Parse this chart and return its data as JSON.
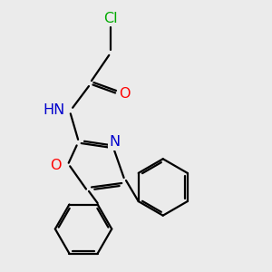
{
  "background_color": "#ebebeb",
  "atom_colors": {
    "C": "#000000",
    "N": "#0000cc",
    "O": "#ff0000",
    "Cl": "#00aa00",
    "H": "#607060"
  },
  "bond_color": "#000000",
  "bond_width": 1.6,
  "font_size_atoms": 11.5
}
